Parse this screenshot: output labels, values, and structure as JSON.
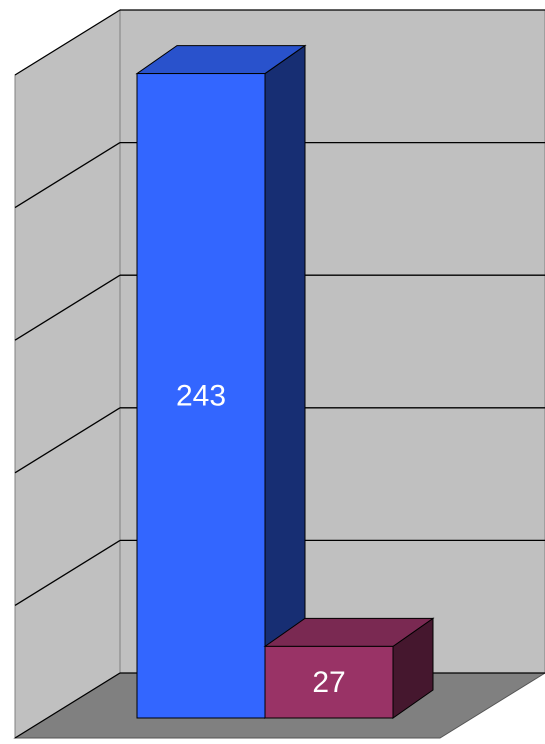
{
  "chart_data": {
    "type": "bar3d",
    "categories": [
      null,
      null
    ],
    "series": [
      {
        "name": null,
        "values": [
          243,
          27
        ],
        "colors": [
          "#3366ff",
          "#993366"
        ]
      }
    ],
    "ylim": [
      0,
      250
    ],
    "yticks": [
      0,
      50,
      100,
      150,
      200,
      250
    ],
    "grid": true
  }
}
